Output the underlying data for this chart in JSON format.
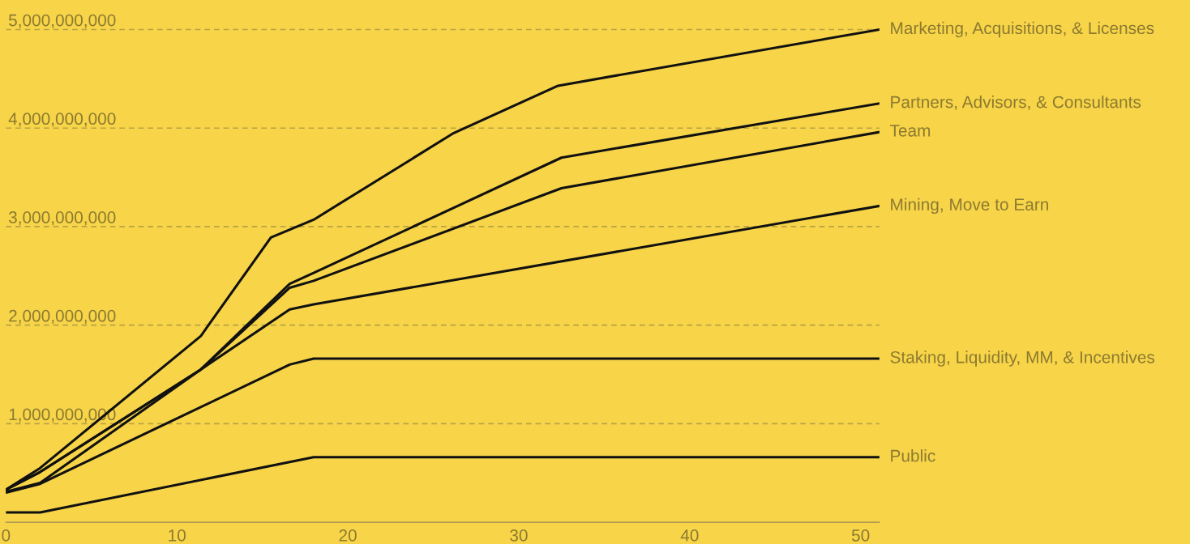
{
  "chart_data": {
    "type": "line",
    "series": [
      {
        "name": "Marketing, Acquisitions, & Licenses",
        "color": "#111111",
        "x": [
          0,
          2,
          11.4,
          15.5,
          18,
          26.2,
          32.3,
          51.1
        ],
        "values": [
          330000000,
          550000000,
          1890000000,
          2890000000,
          3070000000,
          3950000000,
          4430000000,
          5000000000
        ]
      },
      {
        "name": "Partners, Advisors, & Consultants",
        "color": "#111111",
        "x": [
          0,
          2,
          11.4,
          16.6,
          18,
          32.5,
          51.1
        ],
        "values": [
          330000000,
          510000000,
          1550000000,
          2420000000,
          2530000000,
          3700000000,
          4250000000
        ]
      },
      {
        "name": "Team",
        "color": "#111111",
        "x": [
          0,
          2,
          11.4,
          16.6,
          18,
          32.5,
          51.1
        ],
        "values": [
          330000000,
          510000000,
          1550000000,
          2380000000,
          2450000000,
          3390000000,
          3960000000
        ]
      },
      {
        "name": "Mining, Move to Earn",
        "color": "#111111",
        "x": [
          0,
          2,
          11.4,
          16.6,
          18,
          51.1
        ],
        "values": [
          310000000,
          400000000,
          1550000000,
          2160000000,
          2210000000,
          3210000000
        ]
      },
      {
        "name": "Staking, Liquidity, MM, & Incentives",
        "color": "#111111",
        "x": [
          0,
          2,
          16.6,
          18,
          51.1
        ],
        "values": [
          300000000,
          390000000,
          1600000000,
          1660000000,
          1660000000
        ]
      },
      {
        "name": "Public",
        "color": "#111111",
        "x": [
          0,
          2,
          18,
          51.1
        ],
        "values": [
          100000000,
          100000000,
          660000000,
          660000000
        ]
      }
    ],
    "xlim": [
      0,
      51.1
    ],
    "xticks": [
      0,
      10,
      20,
      30,
      40,
      50
    ],
    "ylim": [
      0,
      5300000000
    ],
    "yticks": [
      {
        "value": 1000000000,
        "label": "1,000,000,000"
      },
      {
        "value": 2000000000,
        "label": "2,000,000,000"
      },
      {
        "value": 3000000000,
        "label": "3,000,000,000"
      },
      {
        "value": 4000000000,
        "label": "4,000,000,000"
      },
      {
        "value": 5000000000,
        "label": "5,000,000,000"
      }
    ],
    "grid": "y",
    "legend": false,
    "marker": "none",
    "line_style": "solid"
  }
}
